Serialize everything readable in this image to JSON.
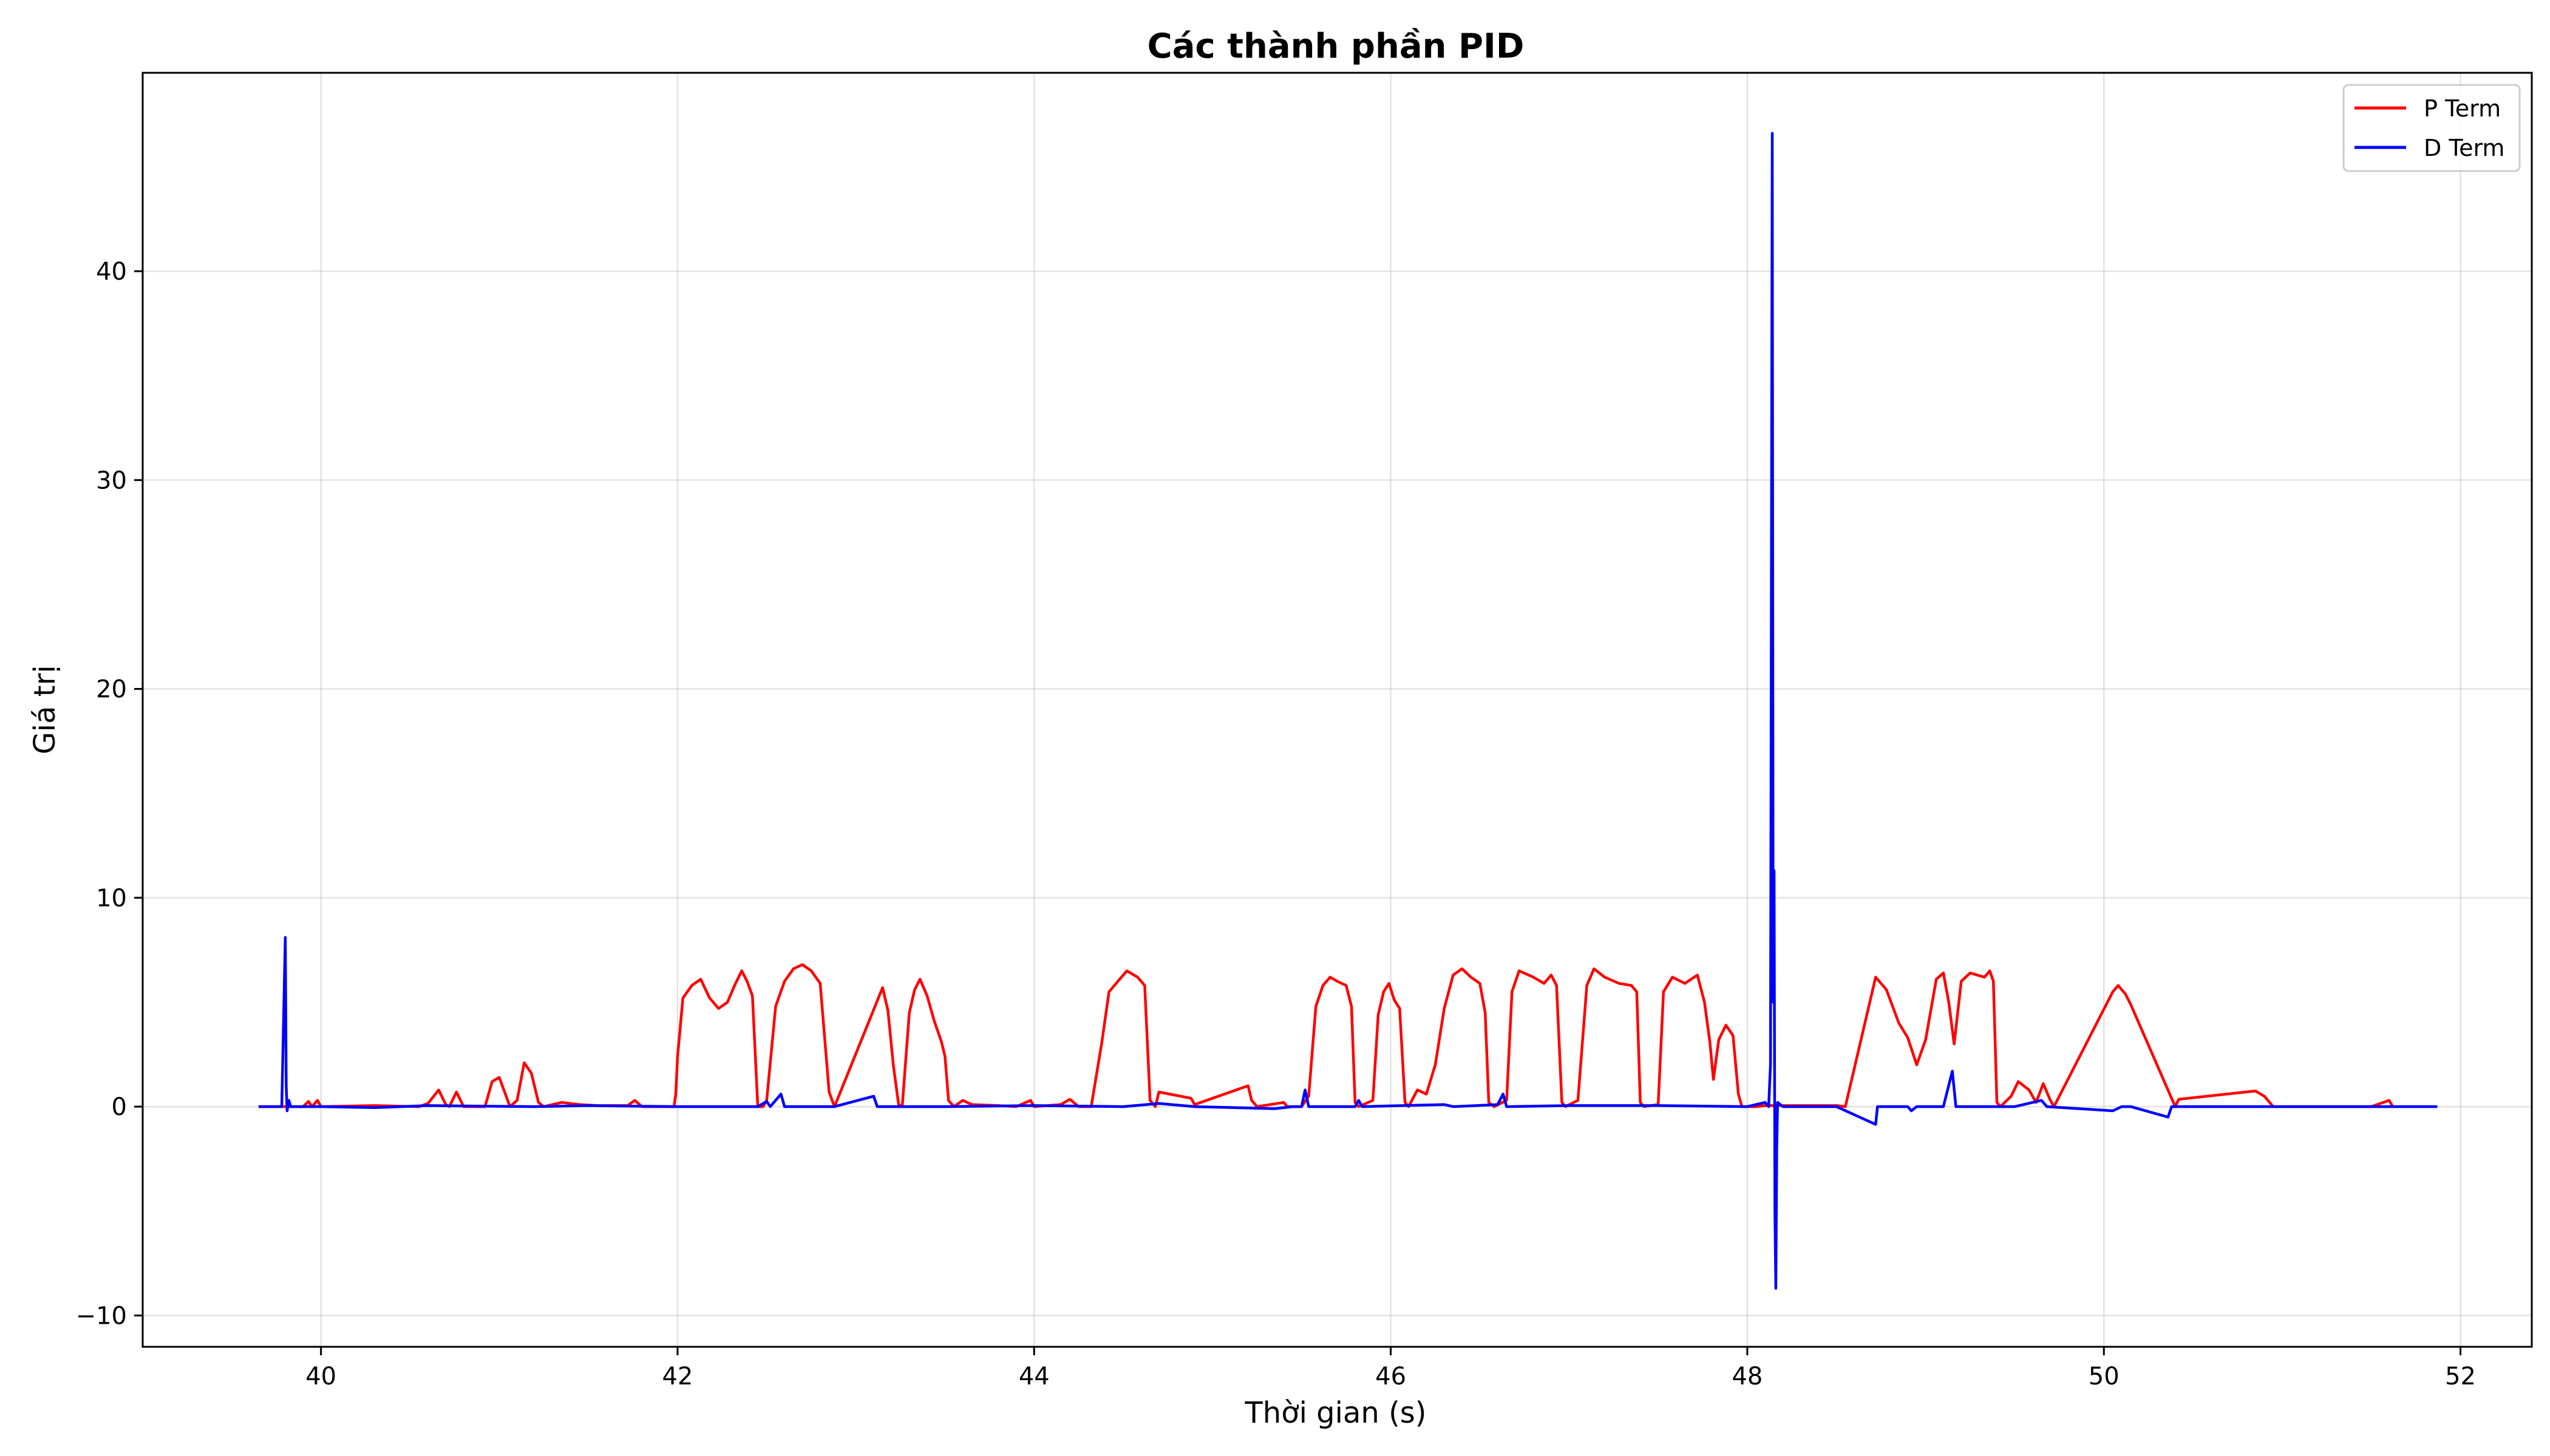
{
  "chart_data": {
    "type": "line",
    "title": "Các thành phần PID",
    "xlabel": "Thời gian (s)",
    "ylabel": "Giá trị",
    "xlim": [
      39.0,
      52.4
    ],
    "ylim": [
      -11.5,
      49.5
    ],
    "xticks": [
      40,
      42,
      44,
      46,
      48,
      50,
      52
    ],
    "yticks": [
      -10,
      0,
      10,
      20,
      30,
      40
    ],
    "ytick_labels": [
      "−10",
      "0",
      "10",
      "20",
      "30",
      "40"
    ],
    "grid": true,
    "legend_position": "top-right",
    "series": [
      {
        "name": "P Term",
        "color": "#ff0000",
        "points": [
          [
            39.65,
            0
          ],
          [
            39.9,
            0
          ],
          [
            39.93,
            0.25
          ],
          [
            39.95,
            0
          ],
          [
            39.98,
            0.3
          ],
          [
            40.0,
            0
          ],
          [
            40.3,
            0.05
          ],
          [
            40.55,
            0
          ],
          [
            40.6,
            0.15
          ],
          [
            40.66,
            0.8
          ],
          [
            40.7,
            0.1
          ],
          [
            40.72,
            0
          ],
          [
            40.76,
            0.7
          ],
          [
            40.8,
            0
          ],
          [
            40.92,
            0
          ],
          [
            40.96,
            1.2
          ],
          [
            41.0,
            1.4
          ],
          [
            41.03,
            0.7
          ],
          [
            41.06,
            0
          ],
          [
            41.1,
            0.3
          ],
          [
            41.14,
            2.1
          ],
          [
            41.18,
            1.6
          ],
          [
            41.22,
            0.2
          ],
          [
            41.25,
            0
          ],
          [
            41.35,
            0.2
          ],
          [
            41.45,
            0.1
          ],
          [
            41.55,
            0.05
          ],
          [
            41.72,
            0.05
          ],
          [
            41.76,
            0.3
          ],
          [
            41.8,
            0
          ],
          [
            41.98,
            0
          ],
          [
            41.99,
            0.6
          ],
          [
            42.0,
            2.4
          ],
          [
            42.03,
            5.2
          ],
          [
            42.08,
            5.8
          ],
          [
            42.13,
            6.1
          ],
          [
            42.18,
            5.2
          ],
          [
            42.23,
            4.7
          ],
          [
            42.28,
            5.0
          ],
          [
            42.32,
            5.8
          ],
          [
            42.36,
            6.5
          ],
          [
            42.39,
            6.0
          ],
          [
            42.42,
            5.3
          ],
          [
            42.45,
            0
          ],
          [
            42.48,
            0
          ],
          [
            42.5,
            0.3
          ],
          [
            42.55,
            4.8
          ],
          [
            42.6,
            6.0
          ],
          [
            42.65,
            6.6
          ],
          [
            42.7,
            6.8
          ],
          [
            42.75,
            6.5
          ],
          [
            42.8,
            5.9
          ],
          [
            42.85,
            0.7
          ],
          [
            42.88,
            0
          ],
          [
            43.15,
            5.7
          ],
          [
            43.18,
            4.6
          ],
          [
            43.21,
            2.0
          ],
          [
            43.24,
            0.1
          ],
          [
            43.26,
            0
          ],
          [
            43.3,
            4.5
          ],
          [
            43.33,
            5.6
          ],
          [
            43.36,
            6.1
          ],
          [
            43.4,
            5.3
          ],
          [
            43.44,
            4.1
          ],
          [
            43.48,
            3.1
          ],
          [
            43.5,
            2.4
          ],
          [
            43.52,
            0.3
          ],
          [
            43.55,
            0
          ],
          [
            43.6,
            0.3
          ],
          [
            43.65,
            0.1
          ],
          [
            43.8,
            0.05
          ],
          [
            43.9,
            0
          ],
          [
            43.98,
            0.3
          ],
          [
            44.0,
            0
          ],
          [
            44.15,
            0.1
          ],
          [
            44.2,
            0.35
          ],
          [
            44.25,
            0
          ],
          [
            44.32,
            0
          ],
          [
            44.38,
            3.1
          ],
          [
            44.42,
            5.5
          ],
          [
            44.48,
            6.1
          ],
          [
            44.52,
            6.5
          ],
          [
            44.58,
            6.2
          ],
          [
            44.62,
            5.8
          ],
          [
            44.65,
            0.3
          ],
          [
            44.68,
            0
          ],
          [
            44.7,
            0.7
          ],
          [
            44.88,
            0.4
          ],
          [
            44.9,
            0.1
          ],
          [
            45.2,
            1.0
          ],
          [
            45.22,
            0.3
          ],
          [
            45.25,
            0
          ],
          [
            45.4,
            0.2
          ],
          [
            45.42,
            0
          ],
          [
            45.5,
            0
          ],
          [
            45.54,
            0.5
          ],
          [
            45.58,
            4.8
          ],
          [
            45.62,
            5.8
          ],
          [
            45.66,
            6.2
          ],
          [
            45.7,
            6.0
          ],
          [
            45.75,
            5.8
          ],
          [
            45.78,
            4.8
          ],
          [
            45.8,
            0.2
          ],
          [
            45.82,
            0
          ],
          [
            45.9,
            0.3
          ],
          [
            45.93,
            4.4
          ],
          [
            45.96,
            5.5
          ],
          [
            45.99,
            5.9
          ],
          [
            46.02,
            5.1
          ],
          [
            46.05,
            4.7
          ],
          [
            46.08,
            0.2
          ],
          [
            46.1,
            0
          ],
          [
            46.15,
            0.8
          ],
          [
            46.2,
            0.6
          ],
          [
            46.25,
            2.0
          ],
          [
            46.3,
            4.7
          ],
          [
            46.35,
            6.3
          ],
          [
            46.4,
            6.6
          ],
          [
            46.45,
            6.2
          ],
          [
            46.5,
            5.9
          ],
          [
            46.53,
            4.5
          ],
          [
            46.55,
            0.2
          ],
          [
            46.58,
            0
          ],
          [
            46.65,
            0.3
          ],
          [
            46.68,
            5.5
          ],
          [
            46.72,
            6.5
          ],
          [
            46.8,
            6.2
          ],
          [
            46.86,
            5.9
          ],
          [
            46.9,
            6.3
          ],
          [
            46.93,
            5.8
          ],
          [
            46.96,
            0.2
          ],
          [
            46.98,
            0
          ],
          [
            47.05,
            0.3
          ],
          [
            47.1,
            5.8
          ],
          [
            47.14,
            6.6
          ],
          [
            47.2,
            6.2
          ],
          [
            47.28,
            5.9
          ],
          [
            47.35,
            5.8
          ],
          [
            47.38,
            5.5
          ],
          [
            47.4,
            0.2
          ],
          [
            47.42,
            0
          ],
          [
            47.5,
            0.1
          ],
          [
            47.53,
            5.5
          ],
          [
            47.58,
            6.2
          ],
          [
            47.65,
            5.9
          ],
          [
            47.72,
            6.3
          ],
          [
            47.76,
            5.0
          ],
          [
            47.79,
            3.1
          ],
          [
            47.81,
            1.3
          ],
          [
            47.84,
            3.2
          ],
          [
            47.88,
            3.9
          ],
          [
            47.92,
            3.4
          ],
          [
            47.95,
            0.6
          ],
          [
            47.97,
            0
          ],
          [
            48.05,
            0
          ],
          [
            48.1,
            0.05
          ],
          [
            48.5,
            0.05
          ],
          [
            48.55,
            0
          ],
          [
            48.72,
            6.2
          ],
          [
            48.78,
            5.6
          ],
          [
            48.85,
            4.0
          ],
          [
            48.9,
            3.3
          ],
          [
            48.95,
            2.0
          ],
          [
            49.0,
            3.2
          ],
          [
            49.06,
            6.1
          ],
          [
            49.1,
            6.4
          ],
          [
            49.13,
            5.0
          ],
          [
            49.16,
            3.0
          ],
          [
            49.2,
            6.0
          ],
          [
            49.25,
            6.4
          ],
          [
            49.33,
            6.2
          ],
          [
            49.36,
            6.5
          ],
          [
            49.38,
            6.0
          ],
          [
            49.4,
            0.2
          ],
          [
            49.42,
            0
          ],
          [
            49.48,
            0.5
          ],
          [
            49.52,
            1.2
          ],
          [
            49.58,
            0.8
          ],
          [
            49.62,
            0.2
          ],
          [
            49.66,
            1.1
          ],
          [
            49.7,
            0.3
          ],
          [
            49.72,
            0
          ],
          [
            50.05,
            5.5
          ],
          [
            50.08,
            5.8
          ],
          [
            50.12,
            5.4
          ],
          [
            50.15,
            4.9
          ],
          [
            50.4,
            0
          ],
          [
            50.42,
            0.35
          ],
          [
            50.85,
            0.75
          ],
          [
            50.9,
            0.5
          ],
          [
            50.95,
            0
          ],
          [
            51.5,
            0
          ],
          [
            51.6,
            0.3
          ],
          [
            51.62,
            0
          ]
        ]
      },
      {
        "name": "D Term",
        "color": "#0000ff",
        "points": [
          [
            39.65,
            0
          ],
          [
            39.78,
            0
          ],
          [
            39.8,
            8.1
          ],
          [
            39.805,
            1.0
          ],
          [
            39.81,
            -0.2
          ],
          [
            39.82,
            0.3
          ],
          [
            39.83,
            0
          ],
          [
            40.0,
            0
          ],
          [
            40.3,
            -0.05
          ],
          [
            40.6,
            0.05
          ],
          [
            41.2,
            0
          ],
          [
            41.5,
            0.05
          ],
          [
            42.0,
            0
          ],
          [
            42.45,
            0
          ],
          [
            42.5,
            0.25
          ],
          [
            42.52,
            0
          ],
          [
            42.58,
            0.6
          ],
          [
            42.6,
            0
          ],
          [
            42.88,
            0
          ],
          [
            43.1,
            0.5
          ],
          [
            43.12,
            0
          ],
          [
            43.5,
            0
          ],
          [
            44.0,
            0.05
          ],
          [
            44.5,
            0
          ],
          [
            44.7,
            0.15
          ],
          [
            44.9,
            0
          ],
          [
            45.35,
            -0.1
          ],
          [
            45.45,
            0
          ],
          [
            45.5,
            0
          ],
          [
            45.52,
            0.8
          ],
          [
            45.54,
            0
          ],
          [
            45.8,
            0
          ],
          [
            45.82,
            0.3
          ],
          [
            45.84,
            0
          ],
          [
            46.3,
            0.1
          ],
          [
            46.35,
            0
          ],
          [
            46.6,
            0.1
          ],
          [
            46.63,
            0.6
          ],
          [
            46.65,
            0
          ],
          [
            47.0,
            0.05
          ],
          [
            47.5,
            0.05
          ],
          [
            48.0,
            0
          ],
          [
            48.1,
            0.2
          ],
          [
            48.12,
            0
          ],
          [
            48.13,
            2.0
          ],
          [
            48.14,
            46.6
          ],
          [
            48.145,
            5.0
          ],
          [
            48.15,
            11.3
          ],
          [
            48.155,
            -5.0
          ],
          [
            48.16,
            -8.7
          ],
          [
            48.165,
            -2.0
          ],
          [
            48.17,
            0.2
          ],
          [
            48.2,
            0
          ],
          [
            48.5,
            0
          ],
          [
            48.72,
            -0.85
          ],
          [
            48.73,
            0
          ],
          [
            48.9,
            0
          ],
          [
            48.92,
            -0.2
          ],
          [
            48.95,
            0
          ],
          [
            49.1,
            0
          ],
          [
            49.15,
            1.7
          ],
          [
            49.17,
            0
          ],
          [
            49.5,
            0
          ],
          [
            49.65,
            0.3
          ],
          [
            49.68,
            0
          ],
          [
            50.05,
            -0.2
          ],
          [
            50.1,
            0
          ],
          [
            50.15,
            0
          ],
          [
            50.36,
            -0.5
          ],
          [
            50.38,
            0
          ],
          [
            51.0,
            0
          ],
          [
            51.87,
            0
          ]
        ]
      }
    ]
  }
}
